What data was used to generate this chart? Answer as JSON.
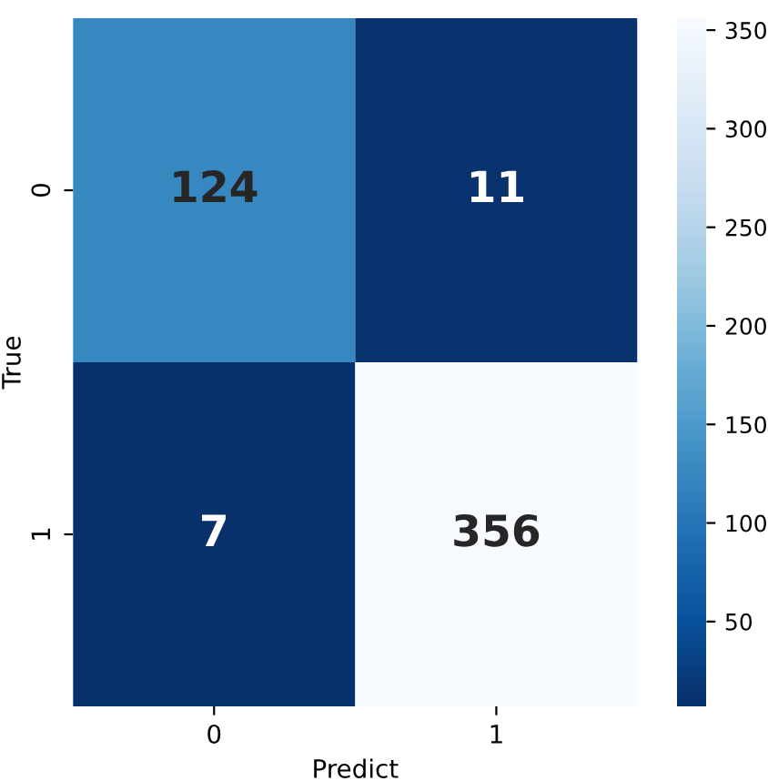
{
  "chart_data": {
    "type": "heatmap",
    "xlabel": "Predict",
    "ylabel": "True",
    "categories": [
      "0",
      "1"
    ],
    "y_categories": [
      "0",
      "1"
    ],
    "cells": [
      [
        124,
        11
      ],
      [
        7,
        356
      ]
    ],
    "data_labels": true,
    "clim": [
      7,
      356
    ],
    "cticks": [
      50,
      100,
      150,
      200,
      250,
      300,
      350
    ]
  }
}
